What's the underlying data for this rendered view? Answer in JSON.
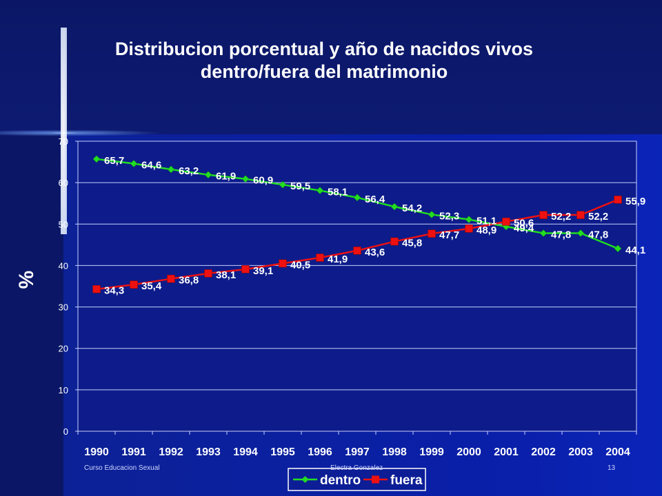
{
  "title_line1": "Distribucion porcentual y año de nacidos vivos",
  "title_line2": "dentro/fuera del matrimonio",
  "footer": {
    "left": "Curso Educacion Sexual",
    "center": "Electra Gonzalez",
    "page": "13"
  },
  "colors": {
    "dentro": "#22dd22",
    "fuera": "#ee1111",
    "plot_bg": "#0d1c8a"
  },
  "chart_data": {
    "type": "line",
    "title": "Distribucion porcentual y año de nacidos vivos dentro/fuera del matrimonio",
    "xlabel": "",
    "ylabel": "%",
    "ylim": [
      0,
      70
    ],
    "yticks": [
      0,
      10,
      20,
      30,
      40,
      50,
      60,
      70
    ],
    "categories": [
      "1990",
      "1991",
      "1992",
      "1993",
      "1994",
      "1995",
      "1996",
      "1997",
      "1998",
      "1999",
      "2000",
      "2001",
      "2002",
      "2003",
      "2004"
    ],
    "grid": true,
    "legend_position": "bottom-center",
    "series": [
      {
        "name": "dentro",
        "values": [
          65.7,
          64.6,
          63.2,
          61.9,
          60.9,
          59.5,
          58.1,
          56.4,
          54.2,
          52.3,
          51.1,
          49.4,
          47.8,
          47.8,
          44.1
        ],
        "labels": [
          "65,7",
          "64,6",
          "63,2",
          "61,9",
          "60,9",
          "59,5",
          "58,1",
          "56,4",
          "54,2",
          "52,3",
          "51,1",
          "49,4",
          "47,8",
          "47,8",
          "44,1"
        ]
      },
      {
        "name": "fuera",
        "values": [
          34.3,
          35.4,
          36.8,
          38.1,
          39.1,
          40.5,
          41.9,
          43.6,
          45.8,
          47.7,
          48.9,
          50.6,
          52.2,
          52.2,
          55.9
        ],
        "labels": [
          "34,3",
          "35,4",
          "36,8",
          "38,1",
          "39,1",
          "40,5",
          "41,9",
          "43,6",
          "45,8",
          "47,7",
          "48,9",
          "50,6",
          "52,2",
          "52,2",
          "55,9"
        ]
      }
    ]
  }
}
